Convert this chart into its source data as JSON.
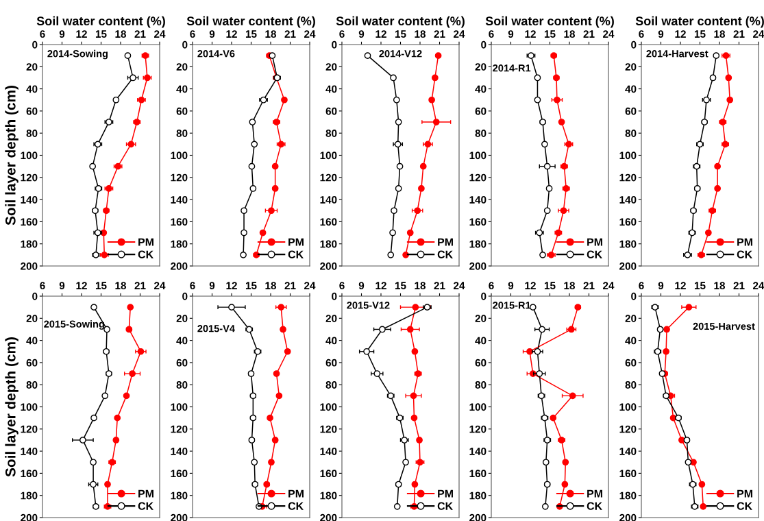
{
  "chart_data": [
    {
      "type": "line",
      "title": "2014-Sowing",
      "xlabel": "Soil water content (%)",
      "ylabel": "Soil layer depth (cm)",
      "xlim": [
        6,
        24
      ],
      "xticks": [
        6,
        9,
        12,
        15,
        18,
        21,
        24
      ],
      "ylim": [
        200,
        0
      ],
      "yticks": [
        0,
        20,
        40,
        60,
        80,
        100,
        120,
        140,
        160,
        180,
        200
      ],
      "legend": "bottom right",
      "marker": "circle",
      "grid": false,
      "series": [
        {
          "name": "PM",
          "color": "#ff0000",
          "x": [
            21.8,
            22.1,
            21.2,
            20.5,
            19.6,
            17.6,
            16.2,
            15.8,
            15.4,
            15.5
          ],
          "values": [
            10,
            30,
            50,
            70,
            90,
            110,
            130,
            150,
            170,
            190
          ],
          "xerrors": [
            0.5,
            0.6,
            0.6,
            0.5,
            0.7,
            0.6,
            0.6,
            0.4,
            0.3,
            0.6
          ]
        },
        {
          "name": "CK",
          "color": "#000000",
          "x": [
            19.1,
            19.9,
            17.3,
            16.2,
            14.5,
            13.7,
            14.6,
            14.1,
            14.5,
            14.2
          ],
          "values": [
            10,
            30,
            50,
            70,
            90,
            110,
            130,
            150,
            170,
            190
          ],
          "xerrors": [
            0.3,
            0.8,
            0.3,
            0.6,
            0.6,
            0.3,
            0.5,
            0.4,
            0.6,
            0.5
          ]
        }
      ]
    },
    {
      "type": "line",
      "title": "2014-V6",
      "xlabel": "Soil water content (%)",
      "xlim": [
        6,
        24
      ],
      "xticks": [
        6,
        9,
        12,
        15,
        18,
        21,
        24
      ],
      "ylim": [
        200,
        0
      ],
      "yticks": [
        0,
        20,
        40,
        60,
        80,
        100,
        120,
        140,
        160,
        180,
        200
      ],
      "legend": "bottom right",
      "marker": "circle",
      "grid": false,
      "series": [
        {
          "name": "PM",
          "color": "#ff0000",
          "x": [
            17.8,
            18.9,
            20.1,
            18.9,
            19.6,
            18.7,
            18.7,
            18.1,
            16.8,
            15.8
          ],
          "values": [
            10,
            30,
            50,
            70,
            90,
            110,
            130,
            150,
            170,
            190
          ],
          "xerrors": [
            0.4,
            0.5,
            0.3,
            0.5,
            0.6,
            0.3,
            0.3,
            0.9,
            0.3,
            0.4
          ]
        },
        {
          "name": "CK",
          "color": "#000000",
          "x": [
            18.25,
            19.0,
            16.9,
            15.2,
            15.5,
            15.1,
            15.3,
            13.9,
            13.9,
            13.8
          ],
          "values": [
            10,
            30,
            50,
            70,
            90,
            110,
            130,
            150,
            170,
            190
          ],
          "xerrors": [
            0.3,
            0.5,
            0.6,
            0.3,
            0.3,
            0.3,
            0.3,
            0.3,
            0.3,
            0.3
          ]
        }
      ]
    },
    {
      "type": "line",
      "title": "2014-V12",
      "xlabel": "Soil water content (%)",
      "xlim": [
        6,
        24
      ],
      "xticks": [
        6,
        9,
        12,
        15,
        18,
        21,
        24
      ],
      "ylim": [
        200,
        0
      ],
      "yticks": [
        0,
        20,
        40,
        60,
        80,
        100,
        120,
        140,
        160,
        180,
        200
      ],
      "legend": "bottom right",
      "marker": "circle",
      "grid": false,
      "series": [
        {
          "name": "PM",
          "color": "#ff0000",
          "x": [
            20.8,
            20.3,
            19.8,
            20.5,
            19.2,
            18.5,
            18.2,
            17.6,
            16.5,
            15.8
          ],
          "values": [
            10,
            30,
            50,
            70,
            90,
            110,
            130,
            150,
            170,
            190
          ],
          "xerrors": [
            0.3,
            0.3,
            0.3,
            2.2,
            0.7,
            0.3,
            0.3,
            0.8,
            0.3,
            0.3
          ]
        },
        {
          "name": "CK",
          "color": "#000000",
          "x": [
            9.95,
            13.9,
            14.4,
            14.7,
            14.6,
            14.9,
            14.7,
            14.0,
            13.8,
            13.5
          ],
          "values": [
            10,
            30,
            50,
            70,
            90,
            110,
            130,
            150,
            170,
            190
          ],
          "xerrors": [
            0.3,
            0.3,
            0.3,
            0.3,
            0.7,
            0.3,
            0.3,
            0.3,
            0.3,
            0.3
          ]
        }
      ]
    },
    {
      "type": "line",
      "title": "2014-R1",
      "xlabel": "Soil water content (%)",
      "xlim": [
        6,
        24
      ],
      "xticks": [
        6,
        9,
        12,
        15,
        18,
        21,
        24
      ],
      "ylim": [
        200,
        0
      ],
      "yticks": [
        0,
        20,
        40,
        60,
        80,
        100,
        120,
        140,
        160,
        180,
        200
      ],
      "legend": "bottom right",
      "marker": "circle",
      "grid": false,
      "series": [
        {
          "name": "PM",
          "color": "#ff0000",
          "x": [
            15.6,
            16.0,
            16.1,
            16.8,
            17.9,
            17.2,
            17.5,
            17.1,
            16.3,
            15.2
          ],
          "values": [
            10,
            30,
            50,
            70,
            90,
            110,
            130,
            150,
            170,
            190
          ],
          "xerrors": [
            0.4,
            0.4,
            0.8,
            0.3,
            0.6,
            0.5,
            0.5,
            0.8,
            0.5,
            0.6
          ]
        },
        {
          "name": "CK",
          "color": "#000000",
          "x": [
            12.1,
            13.1,
            13.1,
            13.9,
            14.2,
            14.6,
            14.9,
            14.6,
            13.4,
            13.9
          ],
          "values": [
            10,
            30,
            50,
            70,
            90,
            110,
            130,
            150,
            170,
            190
          ],
          "xerrors": [
            0.6,
            0.3,
            0.3,
            0.4,
            0.3,
            1.2,
            0.3,
            0.3,
            0.6,
            0.3
          ]
        }
      ]
    },
    {
      "type": "line",
      "title": "2014-Harvest",
      "xlabel": "Soil water content (%)",
      "xlim": [
        6,
        24
      ],
      "xticks": [
        6,
        9,
        12,
        15,
        18,
        21,
        24
      ],
      "ylim": [
        200,
        0
      ],
      "yticks": [
        0,
        20,
        40,
        60,
        80,
        100,
        120,
        140,
        160,
        180,
        200
      ],
      "legend": "bottom right",
      "marker": "circle",
      "grid": false,
      "series": [
        {
          "name": "PM",
          "color": "#ff0000",
          "x": [
            19.0,
            19.4,
            19.6,
            18.5,
            18.9,
            17.7,
            17.7,
            16.9,
            16.3,
            15.2
          ],
          "values": [
            10,
            30,
            50,
            70,
            90,
            110,
            130,
            150,
            170,
            190
          ],
          "xerrors": [
            0.6,
            0.3,
            0.3,
            0.5,
            0.5,
            0.3,
            0.3,
            0.5,
            0.3,
            0.5
          ]
        },
        {
          "name": "CK",
          "color": "#000000",
          "x": [
            17.5,
            17.0,
            16.0,
            15.7,
            15.0,
            14.5,
            14.6,
            14.0,
            13.8,
            13.1
          ],
          "values": [
            10,
            30,
            50,
            70,
            90,
            110,
            130,
            150,
            170,
            190
          ],
          "xerrors": [
            0.3,
            0.4,
            0.6,
            0.4,
            0.5,
            0.5,
            0.4,
            0.4,
            0.5,
            0.6
          ]
        }
      ]
    },
    {
      "type": "line",
      "title": "2015-Sowing",
      "ylabel": "Soil layer depth (cm)",
      "xlim": [
        6,
        24
      ],
      "xticks": [
        6,
        9,
        12,
        15,
        18,
        21,
        24
      ],
      "ylim": [
        200,
        0
      ],
      "yticks": [
        0,
        20,
        40,
        60,
        80,
        100,
        120,
        140,
        160,
        180,
        200
      ],
      "legend": "bottom right",
      "marker": "circle",
      "grid": false,
      "series": [
        {
          "name": "PM",
          "color": "#ff0000",
          "x": [
            19.5,
            19.3,
            21.1,
            19.8,
            18.9,
            17.5,
            17.3,
            16.7,
            16.0,
            16.0
          ],
          "values": [
            10,
            30,
            50,
            70,
            90,
            110,
            130,
            150,
            170,
            190
          ],
          "xerrors": [
            0.3,
            0.4,
            0.8,
            1.2,
            0.3,
            0.3,
            0.3,
            0.5,
            0.3,
            0.5
          ]
        },
        {
          "name": "CK",
          "color": "#000000",
          "x": [
            13.9,
            15.9,
            15.8,
            16.2,
            15.6,
            13.9,
            12.2,
            13.8,
            13.8,
            14.2
          ],
          "values": [
            10,
            30,
            50,
            70,
            90,
            110,
            130,
            150,
            170,
            190
          ],
          "xerrors": [
            0.3,
            0.3,
            0.4,
            0.4,
            0.3,
            0.3,
            1.6,
            0.3,
            0.7,
            0.4
          ]
        }
      ]
    },
    {
      "type": "line",
      "title": "2015-V4",
      "xlim": [
        6,
        24
      ],
      "xticks": [
        6,
        9,
        12,
        15,
        18,
        21,
        24
      ],
      "ylim": [
        200,
        0
      ],
      "yticks": [
        0,
        20,
        40,
        60,
        80,
        100,
        120,
        140,
        160,
        180,
        200
      ],
      "legend": "bottom right",
      "marker": "circle",
      "grid": false,
      "series": [
        {
          "name": "PM",
          "color": "#ff0000",
          "x": [
            19.6,
            19.9,
            20.6,
            18.9,
            19.3,
            17.9,
            18.7,
            18.1,
            17.4,
            16.7
          ],
          "values": [
            10,
            30,
            50,
            70,
            90,
            110,
            130,
            150,
            170,
            190
          ],
          "xerrors": [
            0.8,
            0.3,
            0.3,
            0.3,
            0.3,
            0.3,
            0.3,
            0.3,
            0.4,
            0.7
          ]
        },
        {
          "name": "CK",
          "color": "#000000",
          "x": [
            12.0,
            14.7,
            16.0,
            15.0,
            15.3,
            15.3,
            15.1,
            15.5,
            15.6,
            16.2
          ],
          "values": [
            10,
            30,
            50,
            70,
            90,
            110,
            130,
            150,
            170,
            190
          ],
          "xerrors": [
            2.1,
            0.5,
            0.5,
            0.4,
            0.4,
            0.4,
            0.4,
            0.3,
            0.4,
            0.3
          ]
        }
      ]
    },
    {
      "type": "line",
      "title": "2015-V12",
      "xlim": [
        6,
        24
      ],
      "xticks": [
        6,
        9,
        12,
        15,
        18,
        21,
        24
      ],
      "ylim": [
        200,
        0
      ],
      "yticks": [
        0,
        20,
        40,
        60,
        80,
        100,
        120,
        140,
        160,
        180,
        200
      ],
      "legend": "bottom right",
      "marker": "circle",
      "grid": false,
      "series": [
        {
          "name": "PM",
          "color": "#ff0000",
          "x": [
            17.3,
            16.5,
            17.2,
            17.7,
            17.0,
            17.1,
            17.9,
            18.0,
            17.2,
            17.1
          ],
          "values": [
            10,
            30,
            50,
            70,
            90,
            110,
            130,
            150,
            170,
            190
          ],
          "xerrors": [
            2.3,
            1.4,
            0.3,
            0.5,
            1.2,
            0.3,
            0.3,
            0.6,
            0.3,
            0.5
          ]
        },
        {
          "name": "CK",
          "color": "#000000",
          "x": [
            19.1,
            12.2,
            9.8,
            11.4,
            13.5,
            14.9,
            15.6,
            15.8,
            14.7,
            14.5
          ],
          "values": [
            10,
            30,
            50,
            70,
            90,
            110,
            130,
            150,
            170,
            190
          ],
          "xerrors": [
            0.6,
            1.3,
            1.1,
            0.9,
            0.5,
            0.5,
            0.6,
            0.3,
            0.4,
            0.3
          ]
        }
      ]
    },
    {
      "type": "line",
      "title": "2015-R1",
      "xlim": [
        6,
        24
      ],
      "xticks": [
        6,
        9,
        12,
        15,
        18,
        21,
        24
      ],
      "ylim": [
        200,
        0
      ],
      "yticks": [
        0,
        20,
        40,
        60,
        80,
        100,
        120,
        140,
        160,
        180,
        200
      ],
      "legend": "bottom right",
      "marker": "circle",
      "grid": false,
      "series": [
        {
          "name": "PM",
          "color": "#ff0000",
          "x": [
            19.3,
            18.3,
            11.9,
            12.4,
            18.5,
            15.5,
            16.8,
            17.4,
            17.3,
            16.5
          ],
          "values": [
            10,
            30,
            50,
            70,
            90,
            110,
            130,
            150,
            170,
            190
          ],
          "xerrors": [
            0.4,
            0.7,
            1.0,
            0.9,
            1.6,
            0.3,
            0.5,
            0.3,
            0.3,
            0.3
          ]
        },
        {
          "name": "CK",
          "color": "#000000",
          "x": [
            12.4,
            13.8,
            13.1,
            13.4,
            13.7,
            14.2,
            14.6,
            14.4,
            14.6,
            14.3
          ],
          "values": [
            10,
            30,
            50,
            70,
            90,
            110,
            130,
            150,
            170,
            190
          ],
          "xerrors": [
            0.3,
            1.1,
            0.8,
            0.9,
            0.5,
            0.5,
            0.5,
            0.3,
            0.4,
            0.3
          ]
        }
      ]
    },
    {
      "type": "line",
      "title": "2015-Harvest",
      "xlim": [
        6,
        24
      ],
      "xticks": [
        6,
        9,
        12,
        15,
        18,
        21,
        24
      ],
      "ylim": [
        200,
        0
      ],
      "yticks": [
        0,
        20,
        40,
        60,
        80,
        100,
        120,
        140,
        160,
        180,
        200
      ],
      "legend": "bottom right",
      "marker": "circle",
      "grid": false,
      "series": [
        {
          "name": "PM",
          "color": "#ff0000",
          "x": [
            13.3,
            9.9,
            9.8,
            9.6,
            10.5,
            10.9,
            12.2,
            14.0,
            15.3,
            15.5
          ],
          "values": [
            10,
            30,
            50,
            70,
            90,
            110,
            130,
            150,
            170,
            190
          ],
          "xerrors": [
            1.1,
            0.3,
            0.3,
            0.4,
            0.6,
            0.3,
            0.3,
            0.3,
            0.3,
            0.3
          ]
        },
        {
          "name": "CK",
          "color": "#000000",
          "x": [
            8.1,
            8.9,
            8.5,
            9.2,
            9.8,
            11.7,
            13.0,
            13.2,
            13.9,
            14.2
          ],
          "values": [
            10,
            30,
            50,
            70,
            90,
            110,
            130,
            150,
            170,
            190
          ],
          "xerrors": [
            0.5,
            0.4,
            0.5,
            0.3,
            0.4,
            0.4,
            0.4,
            0.3,
            0.5,
            0.5
          ]
        }
      ]
    }
  ]
}
